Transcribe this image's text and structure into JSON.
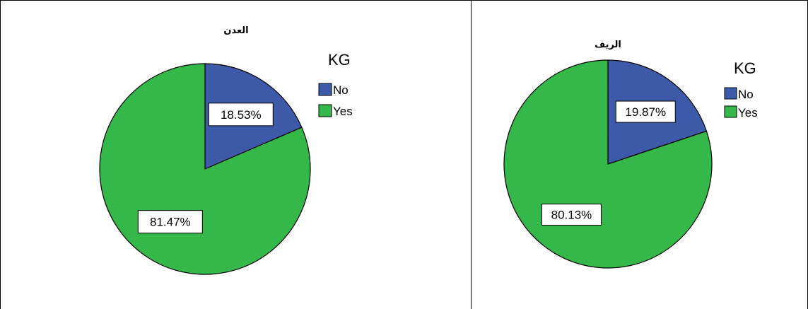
{
  "chart_data": [
    {
      "type": "pie",
      "title": "العدن",
      "legend_title": "KG",
      "legend_position": "top-right",
      "categories": [
        "No",
        "Yes"
      ],
      "values": [
        18.53,
        81.47
      ],
      "labels": [
        "18.53%",
        "81.47%"
      ],
      "colors": [
        "#3d5aa8",
        "#33b849"
      ]
    },
    {
      "type": "pie",
      "title": "الريف",
      "legend_title": "KG",
      "legend_position": "top-right",
      "categories": [
        "No",
        "Yes"
      ],
      "values": [
        19.87,
        80.13
      ],
      "labels": [
        "19.87%",
        "80.13%"
      ],
      "colors": [
        "#3d5aa8",
        "#33b849"
      ]
    }
  ]
}
